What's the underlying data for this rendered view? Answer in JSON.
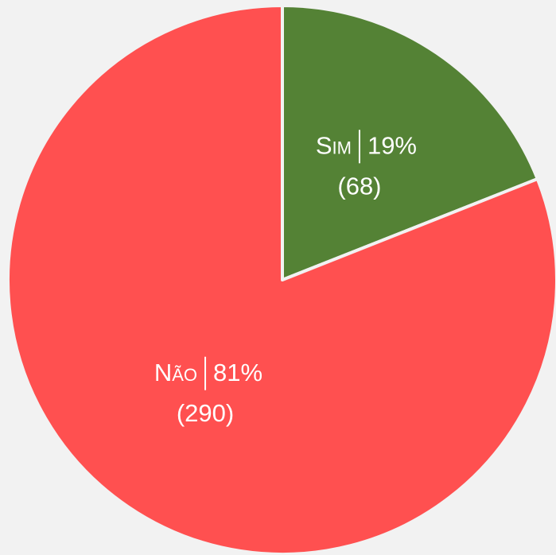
{
  "chart_data": {
    "type": "pie",
    "categories": [
      "Sim",
      "Não"
    ],
    "values": [
      19,
      81
    ],
    "value_labels": [
      "19%",
      "81%"
    ],
    "counts": [
      68,
      290
    ],
    "count_labels": [
      "(68)",
      "(290)"
    ],
    "colors": [
      "#548235",
      "#ff5050"
    ]
  }
}
